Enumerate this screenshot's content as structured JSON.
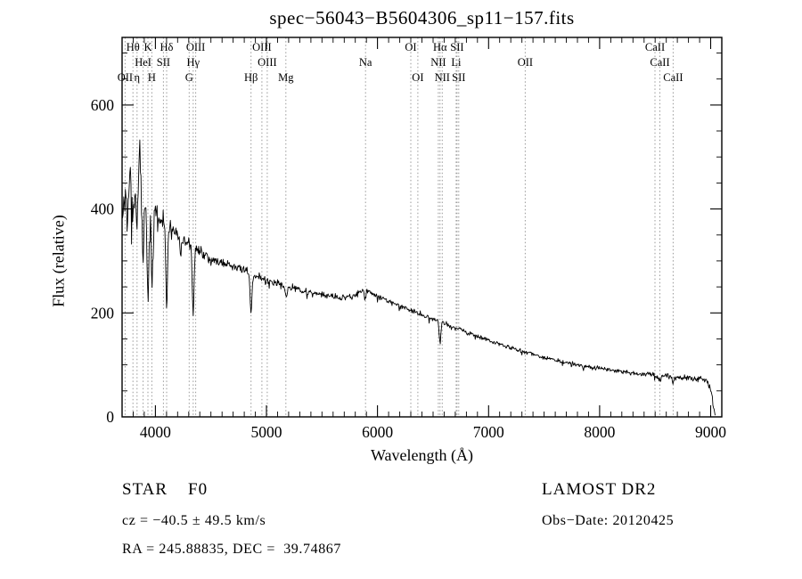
{
  "chart_data": {
    "type": "line",
    "title": "spec−56043−B5604306_sp11−157.fits",
    "xlabel": "Wavelength (Å)",
    "ylabel": "Flux (relative)",
    "xlim": [
      3700,
      9100
    ],
    "ylim": [
      0,
      730
    ],
    "xticks": [
      4000,
      5000,
      6000,
      7000,
      8000,
      9000
    ],
    "yticks": [
      0,
      200,
      400,
      600
    ],
    "x_minor_step": 100,
    "y_minor_step": 50,
    "grid": false,
    "legend": "none",
    "trace_color": "#000000",
    "dotted_line_color": "#999999",
    "seed": 1234567,
    "spectral_lines": [
      {
        "wavelength": 3727,
        "label": "OII",
        "row": 3
      },
      {
        "wavelength": 3798,
        "label": "Hθ",
        "row": 1
      },
      {
        "wavelength": 3835,
        "label": "η",
        "row": 3
      },
      {
        "wavelength": 3889,
        "label": "HeI",
        "row": 2
      },
      {
        "wavelength": 3933,
        "label": "K",
        "row": 1
      },
      {
        "wavelength": 3968,
        "label": "H",
        "row": 3
      },
      {
        "wavelength": 4072,
        "label": "SII",
        "row": 2
      },
      {
        "wavelength": 4101,
        "label": "Hδ",
        "row": 1
      },
      {
        "wavelength": 4304,
        "label": "G",
        "row": 3
      },
      {
        "wavelength": 4340,
        "label": "Hγ",
        "row": 2
      },
      {
        "wavelength": 4363,
        "label": "OIII",
        "row": 1
      },
      {
        "wavelength": 4861,
        "label": "Hβ",
        "row": 3
      },
      {
        "wavelength": 4959,
        "label": "OIII",
        "row": 1
      },
      {
        "wavelength": 5007,
        "label": "OIII",
        "row": 2
      },
      {
        "wavelength": 5175,
        "label": "Mg",
        "row": 3
      },
      {
        "wavelength": 5892,
        "label": "Na",
        "row": 2
      },
      {
        "wavelength": 6300,
        "label": "OI",
        "row": 1
      },
      {
        "wavelength": 6363,
        "label": "OI",
        "row": 3
      },
      {
        "wavelength": 6548,
        "label": "NII",
        "row": 2
      },
      {
        "wavelength": 6563,
        "label": "Hα",
        "row": 1
      },
      {
        "wavelength": 6583,
        "label": "NII",
        "row": 3
      },
      {
        "wavelength": 6708,
        "label": "Li",
        "row": 2
      },
      {
        "wavelength": 6716,
        "label": "SII",
        "row": 1
      },
      {
        "wavelength": 6731,
        "label": "SII",
        "row": 3
      },
      {
        "wavelength": 7330,
        "label": "OII",
        "row": 2
      },
      {
        "wavelength": 8498,
        "label": "CaII",
        "row": 1
      },
      {
        "wavelength": 8542,
        "label": "CaII",
        "row": 2
      },
      {
        "wavelength": 8662,
        "label": "CaII",
        "row": 3
      }
    ],
    "continuum": [
      [
        3700,
        380
      ],
      [
        3720,
        420
      ],
      [
        3740,
        410
      ],
      [
        3760,
        455
      ],
      [
        3780,
        440
      ],
      [
        3800,
        465
      ],
      [
        3820,
        435
      ],
      [
        3840,
        480
      ],
      [
        3860,
        495
      ],
      [
        3880,
        445
      ],
      [
        3900,
        425
      ],
      [
        3930,
        405
      ],
      [
        3960,
        410
      ],
      [
        4000,
        395
      ],
      [
        4050,
        382
      ],
      [
        4100,
        372
      ],
      [
        4150,
        357
      ],
      [
        4200,
        347
      ],
      [
        4250,
        340
      ],
      [
        4300,
        332
      ],
      [
        4350,
        326
      ],
      [
        4400,
        318
      ],
      [
        4450,
        311
      ],
      [
        4500,
        304
      ],
      [
        4600,
        296
      ],
      [
        4700,
        290
      ],
      [
        4800,
        283
      ],
      [
        4900,
        272
      ],
      [
        5000,
        263
      ],
      [
        5100,
        256
      ],
      [
        5200,
        250
      ],
      [
        5300,
        244
      ],
      [
        5400,
        239
      ],
      [
        5500,
        235
      ],
      [
        5600,
        231
      ],
      [
        5700,
        229
      ],
      [
        5800,
        234
      ],
      [
        5850,
        241
      ],
      [
        5900,
        244
      ],
      [
        5950,
        238
      ],
      [
        6000,
        230
      ],
      [
        6100,
        222
      ],
      [
        6200,
        213
      ],
      [
        6300,
        205
      ],
      [
        6400,
        197
      ],
      [
        6500,
        189
      ],
      [
        6600,
        180
      ],
      [
        6700,
        171
      ],
      [
        6800,
        163
      ],
      [
        6900,
        155
      ],
      [
        7000,
        147
      ],
      [
        7100,
        140
      ],
      [
        7200,
        133
      ],
      [
        7300,
        126
      ],
      [
        7400,
        120
      ],
      [
        7500,
        114
      ],
      [
        7600,
        109
      ],
      [
        7700,
        104
      ],
      [
        7800,
        100
      ],
      [
        7900,
        96
      ],
      [
        8000,
        93
      ],
      [
        8100,
        90
      ],
      [
        8200,
        87
      ],
      [
        8300,
        84
      ],
      [
        8400,
        82
      ],
      [
        8500,
        80
      ],
      [
        8600,
        78
      ],
      [
        8700,
        76
      ],
      [
        8800,
        74
      ],
      [
        8900,
        72
      ],
      [
        8950,
        70
      ],
      [
        9000,
        58
      ],
      [
        9020,
        28
      ],
      [
        9040,
        5
      ]
    ],
    "absorption_features": [
      [
        3750,
        80,
        6
      ],
      [
        3798,
        90,
        7
      ],
      [
        3835,
        100,
        7
      ],
      [
        3889,
        110,
        8
      ],
      [
        3933,
        160,
        9
      ],
      [
        3970,
        150,
        9
      ],
      [
        4101,
        155,
        8
      ],
      [
        4227,
        40,
        6
      ],
      [
        4340,
        130,
        8
      ],
      [
        4861,
        80,
        8
      ],
      [
        5175,
        18,
        10
      ],
      [
        5892,
        12,
        8
      ],
      [
        6563,
        40,
        8
      ],
      [
        8542,
        10,
        8
      ],
      [
        8662,
        8,
        8
      ]
    ],
    "noise_sigma": [
      [
        3700,
        50
      ],
      [
        3850,
        55
      ],
      [
        3950,
        45
      ],
      [
        4000,
        30
      ],
      [
        4100,
        22
      ],
      [
        4300,
        15
      ],
      [
        4600,
        11
      ],
      [
        5000,
        9
      ],
      [
        5500,
        8
      ],
      [
        6000,
        7
      ],
      [
        6500,
        6
      ],
      [
        7000,
        5
      ],
      [
        7500,
        5
      ],
      [
        8000,
        5
      ],
      [
        8500,
        6
      ],
      [
        8800,
        7
      ],
      [
        9000,
        8
      ]
    ]
  },
  "footer": {
    "object_class": "STAR    F0",
    "survey": "LAMOST DR2",
    "cz": "cz = −40.5 ± 49.5 km/s",
    "obs_date": "Obs−Date: 20120425",
    "coordinates": "RA = 245.88835, DEC =  39.74867"
  }
}
